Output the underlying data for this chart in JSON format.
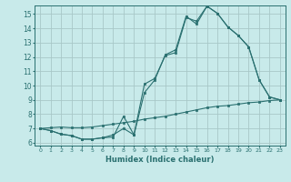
{
  "title": "",
  "xlabel": "Humidex (Indice chaleur)",
  "ylabel": "",
  "background_color": "#c8eaea",
  "grid_color": "#a8c8c8",
  "line_color": "#2a7070",
  "xlim": [
    -0.5,
    23.5
  ],
  "ylim": [
    5.8,
    15.6
  ],
  "yticks": [
    6,
    7,
    8,
    9,
    10,
    11,
    12,
    13,
    14,
    15
  ],
  "xticks": [
    0,
    1,
    2,
    3,
    4,
    5,
    6,
    7,
    8,
    9,
    10,
    11,
    12,
    13,
    14,
    15,
    16,
    17,
    18,
    19,
    20,
    21,
    22,
    23
  ],
  "line1_x": [
    0,
    1,
    2,
    3,
    4,
    5,
    6,
    7,
    8,
    9,
    10,
    11,
    12,
    13,
    14,
    15,
    16,
    17,
    18,
    19,
    20,
    21,
    22,
    23
  ],
  "line1_y": [
    7.0,
    6.85,
    6.6,
    6.5,
    6.25,
    6.25,
    6.35,
    6.4,
    7.85,
    6.55,
    10.1,
    10.5,
    12.1,
    12.3,
    14.75,
    14.5,
    15.55,
    15.05,
    14.1,
    13.5,
    12.7,
    10.4,
    9.2,
    9.0
  ],
  "line2_x": [
    0,
    1,
    2,
    3,
    4,
    5,
    6,
    7,
    8,
    9,
    10,
    11,
    12,
    13,
    14,
    15,
    16,
    17,
    18,
    19,
    20,
    21,
    22,
    23
  ],
  "line2_y": [
    7.0,
    6.85,
    6.6,
    6.5,
    6.25,
    6.25,
    6.35,
    6.55,
    7.0,
    6.55,
    9.5,
    10.4,
    12.15,
    12.5,
    14.85,
    14.3,
    15.55,
    15.05,
    14.1,
    13.5,
    12.7,
    10.4,
    9.2,
    9.0
  ],
  "line3_x": [
    0,
    1,
    2,
    3,
    4,
    5,
    6,
    7,
    8,
    9,
    10,
    11,
    12,
    13,
    14,
    15,
    16,
    17,
    18,
    19,
    20,
    21,
    22,
    23
  ],
  "line3_y": [
    7.0,
    7.05,
    7.1,
    7.05,
    7.05,
    7.1,
    7.2,
    7.3,
    7.4,
    7.5,
    7.65,
    7.75,
    7.85,
    8.0,
    8.15,
    8.3,
    8.45,
    8.55,
    8.6,
    8.7,
    8.8,
    8.85,
    8.95,
    9.0
  ]
}
